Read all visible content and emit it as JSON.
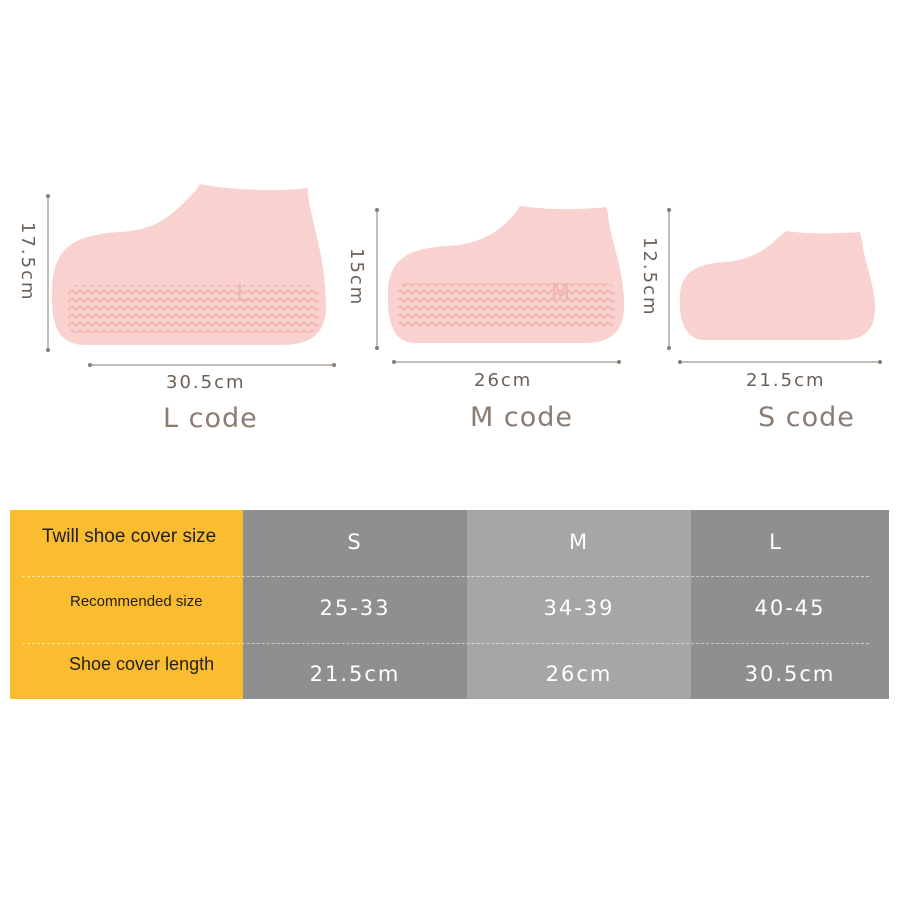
{
  "shoes": [
    {
      "code_label": "L code",
      "sole_letter": "L",
      "height_label": "17.5cm",
      "length_label": "30.5cm"
    },
    {
      "code_label": "M code",
      "sole_letter": "M",
      "height_label": "15cm",
      "length_label": "26cm"
    },
    {
      "code_label": "S code",
      "sole_letter": "",
      "height_label": "12.5cm",
      "length_label": "21.5cm"
    }
  ],
  "table": {
    "row_headers": [
      "Twill shoe cover size",
      "Recommended size",
      "Shoe cover length"
    ],
    "columns": [
      {
        "size": "S",
        "recommended": "25-33",
        "length": "21.5cm"
      },
      {
        "size": "M",
        "recommended": "34-39",
        "length": "26cm"
      },
      {
        "size": "L",
        "recommended": "40-45",
        "length": "30.5cm"
      }
    ]
  },
  "colors": {
    "shoe_fill": "#f9d2cf",
    "header_column": "#fbbd2f",
    "dark_column": "#8f8f8f",
    "light_column": "#a6a6a6",
    "dimension_text": "#6b5f56"
  }
}
